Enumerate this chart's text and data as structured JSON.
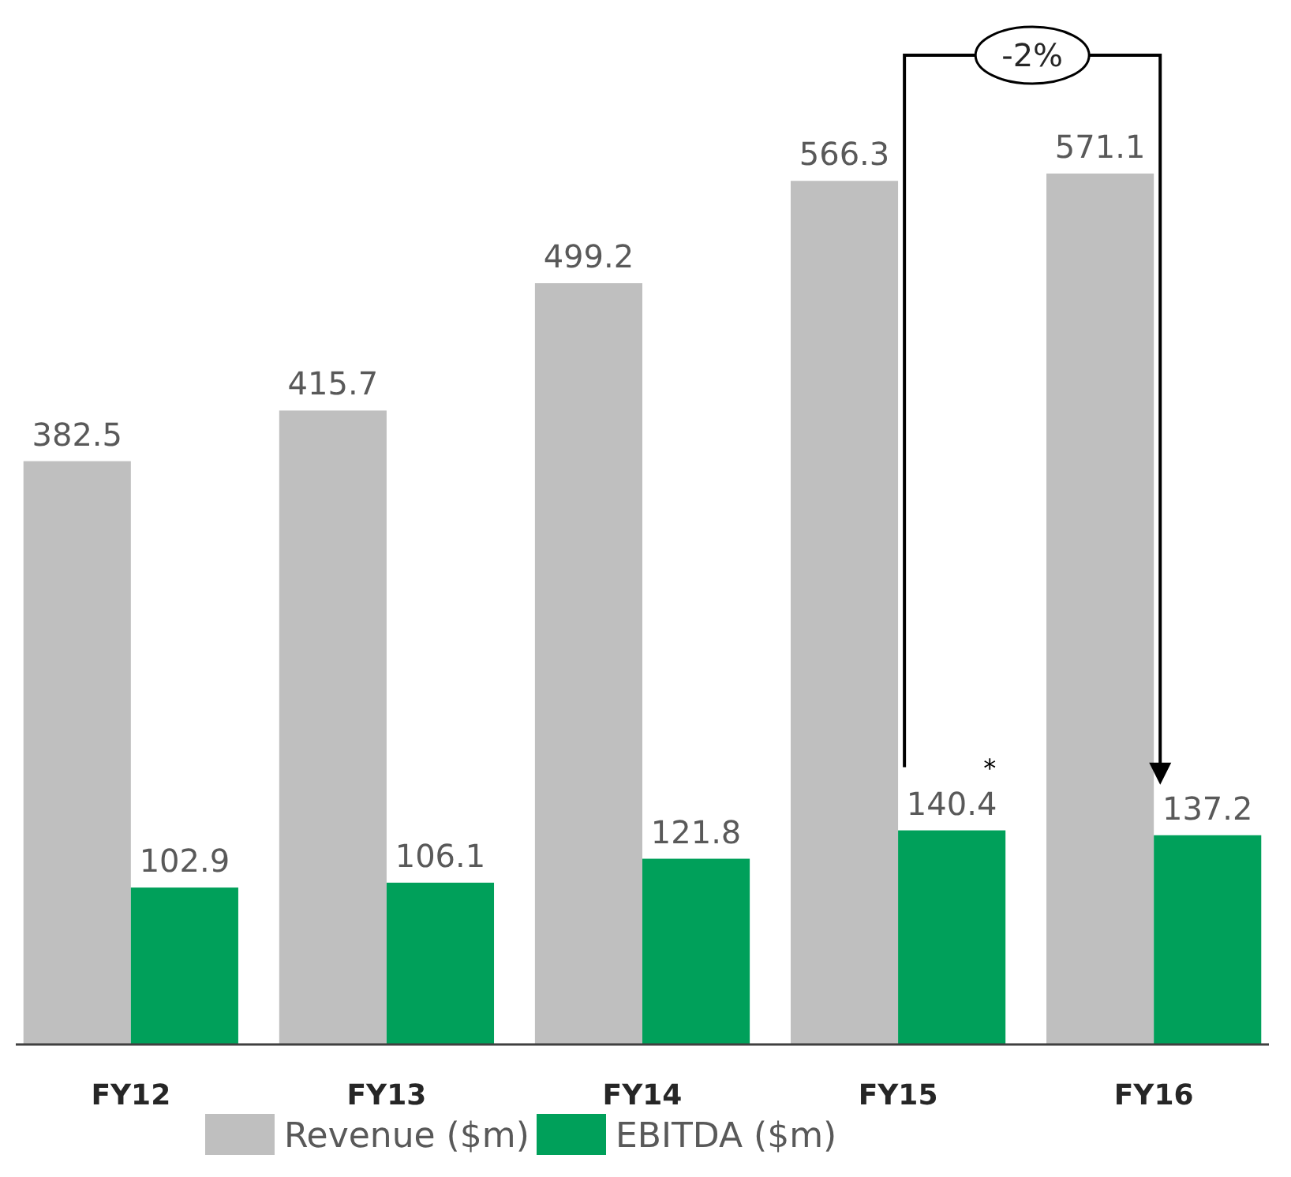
{
  "chart_data": {
    "type": "bar",
    "categories": [
      "FY12",
      "FY13",
      "FY14",
      "FY15",
      "FY16"
    ],
    "series": [
      {
        "name": "Revenue ($m)",
        "color": "#bfbfbf",
        "values": [
          382.5,
          415.7,
          499.2,
          566.3,
          571.1
        ]
      },
      {
        "name": "EBITDA ($m)",
        "color": "#00a05a",
        "values": [
          102.9,
          106.1,
          121.8,
          140.4,
          137.2
        ]
      }
    ],
    "data_labels": true,
    "legend": "bottom",
    "annotations": [
      "-2%",
      "*"
    ]
  }
}
